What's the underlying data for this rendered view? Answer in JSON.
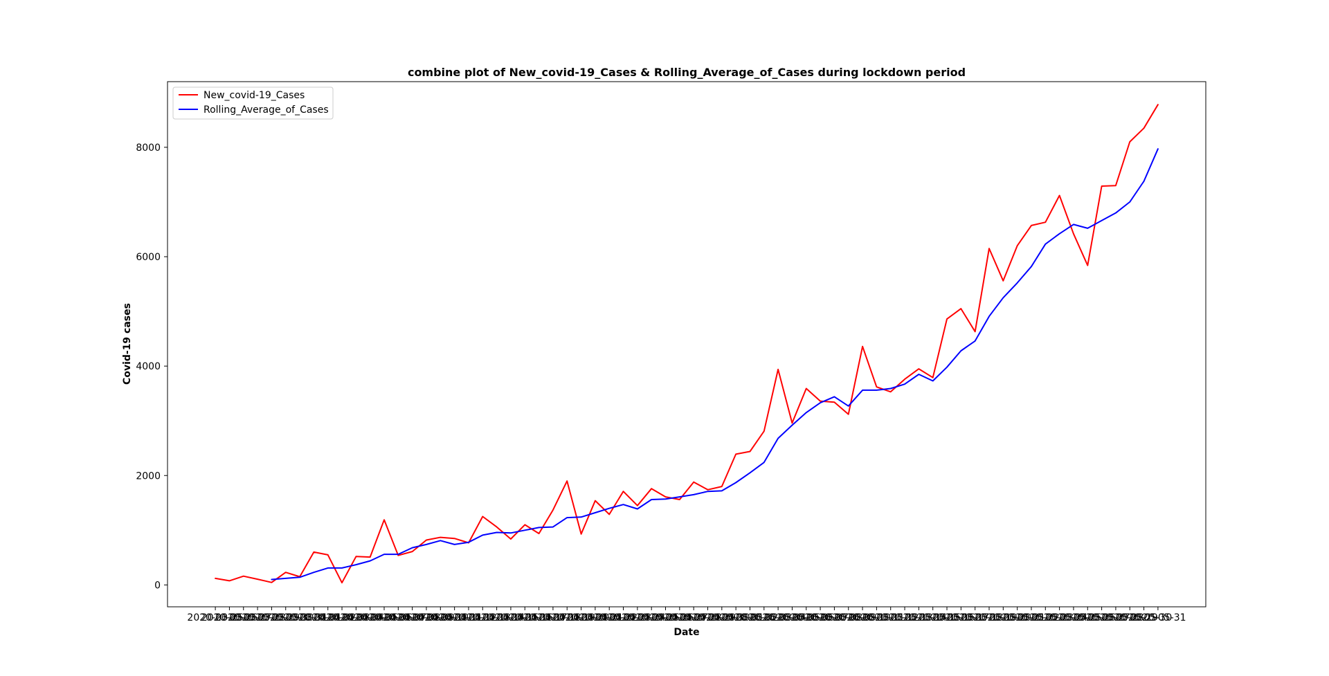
{
  "chart_data": {
    "type": "line",
    "title": "combine plot of New_covid-19_Cases & Rolling_Average_of_Cases during lockdown period",
    "xlabel": "Date",
    "ylabel": "Covid-19 cases",
    "ylim": [
      -400,
      9200
    ],
    "yticks": [
      0,
      2000,
      4000,
      6000,
      8000
    ],
    "grid": false,
    "legend_position": "upper left",
    "x_first_label": "2020-03-25",
    "x_last_label": "2020-05-31",
    "series": [
      {
        "name": "New_covid-19_Cases",
        "color": "#ff0000",
        "x": [
          "2020-03-25",
          "2020-03-26",
          "2020-03-27",
          "2020-03-28",
          "2020-03-29",
          "2020-03-30",
          "2020-03-31",
          "2020-04-01",
          "2020-04-02",
          "2020-04-03",
          "2020-04-04",
          "2020-04-05",
          "2020-04-06",
          "2020-04-07",
          "2020-04-08",
          "2020-04-09",
          "2020-04-10",
          "2020-04-11",
          "2020-04-12",
          "2020-04-13",
          "2020-04-14",
          "2020-04-15",
          "2020-04-16",
          "2020-04-17",
          "2020-04-18",
          "2020-04-19",
          "2020-04-20",
          "2020-04-21",
          "2020-04-22",
          "2020-04-23",
          "2020-04-24",
          "2020-04-25",
          "2020-04-26",
          "2020-04-27",
          "2020-04-28",
          "2020-04-29",
          "2020-04-30",
          "2020-05-01",
          "2020-05-02",
          "2020-05-03",
          "2020-05-04",
          "2020-05-05",
          "2020-05-06",
          "2020-05-07",
          "2020-05-08",
          "2020-05-09",
          "2020-05-10",
          "2020-05-11",
          "2020-05-12",
          "2020-05-13",
          "2020-05-14",
          "2020-05-15",
          "2020-05-16",
          "2020-05-17",
          "2020-05-18",
          "2020-05-19",
          "2020-05-20",
          "2020-05-21",
          "2020-05-22",
          "2020-05-23",
          "2020-05-24",
          "2020-05-25",
          "2020-05-26",
          "2020-05-27",
          "2020-05-28",
          "2020-05-29",
          "2020-05-30",
          "2020-05-31"
        ],
        "y": [
          120,
          75,
          160,
          105,
          45,
          230,
          150,
          600,
          550,
          40,
          520,
          510,
          1190,
          540,
          610,
          820,
          870,
          850,
          770,
          1250,
          1060,
          840,
          1100,
          940,
          1370,
          1900,
          930,
          1540,
          1290,
          1710,
          1450,
          1760,
          1610,
          1560,
          1880,
          1740,
          1800,
          2390,
          2440,
          2810,
          3940,
          2960,
          3590,
          3360,
          3340,
          3120,
          4360,
          3620,
          3530,
          3760,
          3950,
          3790,
          4860,
          5050,
          4630,
          6150,
          5560,
          6200,
          6570,
          6630,
          7120,
          6420,
          5840,
          7290,
          7300,
          8100,
          8350,
          8780
        ]
      },
      {
        "name": "Rolling_Average_of_Cases",
        "color": "#0000ff",
        "x": [
          "2020-03-29",
          "2020-03-30",
          "2020-03-31",
          "2020-04-01",
          "2020-04-02",
          "2020-04-03",
          "2020-04-04",
          "2020-04-05",
          "2020-04-06",
          "2020-04-07",
          "2020-04-08",
          "2020-04-09",
          "2020-04-10",
          "2020-04-11",
          "2020-04-12",
          "2020-04-13",
          "2020-04-14",
          "2020-04-15",
          "2020-04-16",
          "2020-04-17",
          "2020-04-18",
          "2020-04-19",
          "2020-04-20",
          "2020-04-21",
          "2020-04-22",
          "2020-04-23",
          "2020-04-24",
          "2020-04-25",
          "2020-04-26",
          "2020-04-27",
          "2020-04-28",
          "2020-04-29",
          "2020-04-30",
          "2020-05-01",
          "2020-05-02",
          "2020-05-03",
          "2020-05-04",
          "2020-05-05",
          "2020-05-06",
          "2020-05-07",
          "2020-05-08",
          "2020-05-09",
          "2020-05-10",
          "2020-05-11",
          "2020-05-12",
          "2020-05-13",
          "2020-05-14",
          "2020-05-15",
          "2020-05-16",
          "2020-05-17",
          "2020-05-18",
          "2020-05-19",
          "2020-05-20",
          "2020-05-21",
          "2020-05-22",
          "2020-05-23",
          "2020-05-24",
          "2020-05-25",
          "2020-05-26",
          "2020-05-27",
          "2020-05-28",
          "2020-05-29",
          "2020-05-30",
          "2020-05-31"
        ],
        "y": [
          100,
          120,
          140,
          230,
          310,
          310,
          370,
          440,
          560,
          560,
          680,
          740,
          810,
          740,
          780,
          910,
          960,
          950,
          1000,
          1050,
          1060,
          1230,
          1240,
          1320,
          1400,
          1470,
          1390,
          1560,
          1570,
          1610,
          1650,
          1710,
          1720,
          1870,
          2050,
          2240,
          2680,
          2920,
          3150,
          3330,
          3440,
          3270,
          3560,
          3560,
          3590,
          3670,
          3850,
          3730,
          3980,
          4280,
          4460,
          4910,
          5250,
          5520,
          5820,
          6230,
          6420,
          6590,
          6520,
          6660,
          6800,
          7000,
          7380,
          7970
        ]
      }
    ]
  }
}
